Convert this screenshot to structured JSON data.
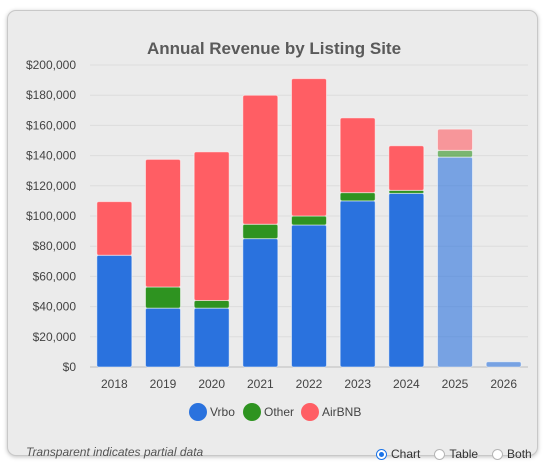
{
  "chart_data": {
    "type": "bar",
    "stacked": true,
    "title": "Annual Revenue by Listing Site",
    "categories": [
      "2018",
      "2019",
      "2020",
      "2021",
      "2022",
      "2023",
      "2024",
      "2025",
      "2026"
    ],
    "series": [
      {
        "name": "Vrbo",
        "color": "#2a72de",
        "values": [
          74000,
          39000,
          39000,
          85000,
          94000,
          110000,
          115000,
          139000,
          3500
        ]
      },
      {
        "name": "Other",
        "color": "#2e9320",
        "values": [
          0,
          14000,
          5000,
          9500,
          6000,
          5500,
          2000,
          4500,
          0
        ]
      },
      {
        "name": "AirBNB",
        "color": "#ff5e64",
        "values": [
          35500,
          84500,
          98500,
          85500,
          91000,
          49500,
          29500,
          14000,
          0
        ]
      }
    ],
    "partial_categories": [
      "2025",
      "2026"
    ],
    "ylim": [
      0,
      200000
    ],
    "yticks": [
      0,
      20000,
      40000,
      60000,
      80000,
      100000,
      120000,
      140000,
      160000,
      180000,
      200000
    ],
    "ytick_labels": [
      "$0",
      "$20,000",
      "$40,000",
      "$60,000",
      "$80,000",
      "$100,000",
      "$120,000",
      "$140,000",
      "$160,000",
      "$180,000",
      "$200,000"
    ],
    "grid": true,
    "legend_position": "bottom"
  },
  "footer_note": "Transparent indicates partial data",
  "view_options": [
    {
      "label": "Chart",
      "selected": true
    },
    {
      "label": "Table",
      "selected": false
    },
    {
      "label": "Both",
      "selected": false
    }
  ]
}
